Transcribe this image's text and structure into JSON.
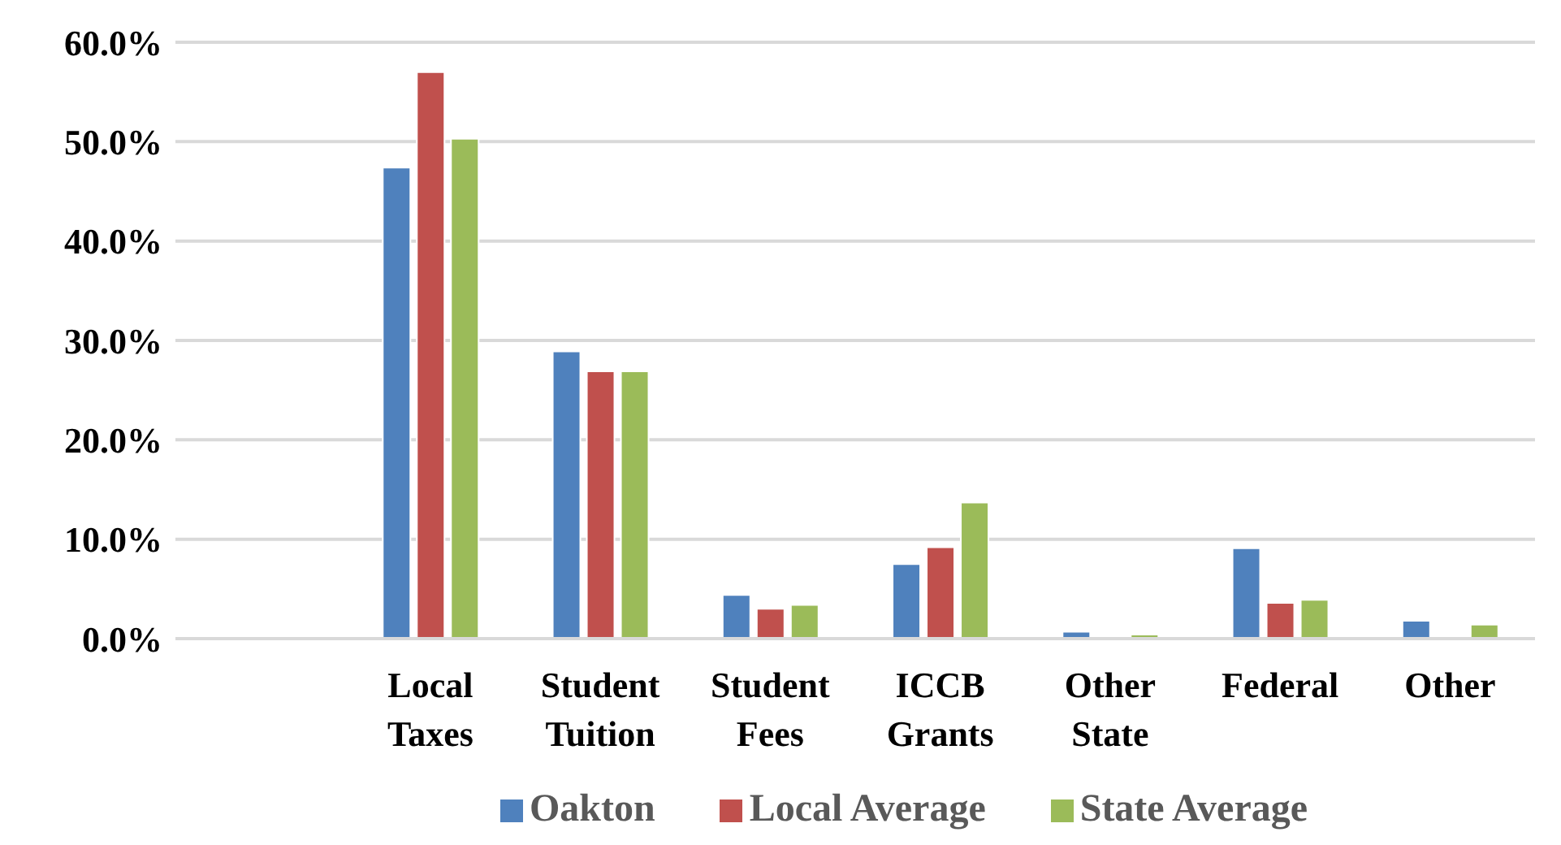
{
  "chart_data": {
    "type": "bar",
    "categories": [
      null,
      "Local Taxes",
      "Student Tuition",
      "Student Fees",
      "ICCB Grants",
      "Other State",
      "Federal",
      "Other"
    ],
    "series": [
      {
        "name": "Oakton",
        "color": "#4f81bd",
        "values": [
          null,
          47.4,
          28.9,
          4.4,
          7.5,
          0.7,
          9.1,
          1.8
        ]
      },
      {
        "name": "Local Average",
        "color": "#c0504d",
        "values": [
          null,
          57.0,
          26.9,
          3.0,
          9.2,
          0,
          3.6,
          0
        ]
      },
      {
        "name": "State Average",
        "color": "#9bbb59",
        "values": [
          null,
          50.3,
          26.9,
          3.4,
          13.7,
          0.4,
          3.9,
          1.4
        ]
      }
    ],
    "ylim": [
      0,
      60
    ],
    "yticks": [
      {
        "value": 0,
        "label": "0.0%"
      },
      {
        "value": 10,
        "label": "10.0%"
      },
      {
        "value": 20,
        "label": "20.0%"
      },
      {
        "value": 30,
        "label": "30.0%"
      },
      {
        "value": 40,
        "label": "40.0%"
      },
      {
        "value": 50,
        "label": "50.0%"
      },
      {
        "value": 60,
        "label": "60.0%"
      }
    ],
    "grid": "y",
    "legend": "bottom"
  }
}
